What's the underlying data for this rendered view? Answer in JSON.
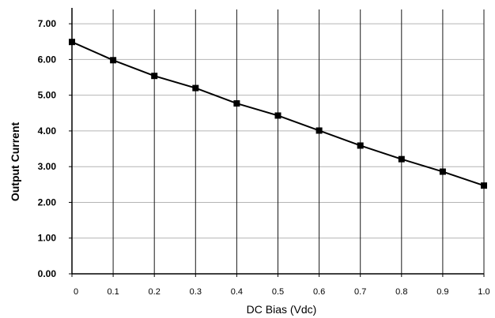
{
  "chart_data": {
    "type": "line",
    "xlabel": "DC Bias (Vdc)",
    "ylabel": "Output Current",
    "x": [
      0,
      0.1,
      0.2,
      0.3,
      0.4,
      0.5,
      0.6,
      0.7,
      0.8,
      0.9,
      1.0
    ],
    "x_tick_labels": [
      "0",
      "0.1",
      "0.2",
      "0.3",
      "0.4",
      "0.5",
      "0.6",
      "0.7",
      "0.8",
      "0.9",
      "1.0"
    ],
    "y_ticks": [
      0,
      1,
      2,
      3,
      4,
      5,
      6,
      7
    ],
    "y_tick_labels": [
      "0.00",
      "1.00",
      "2.00",
      "3.00",
      "4.00",
      "5.00",
      "6.00",
      "7.00"
    ],
    "series": [
      {
        "values": [
          6.49,
          5.98,
          5.54,
          5.2,
          4.77,
          4.43,
          4.01,
          3.59,
          3.21,
          2.86,
          2.47
        ]
      }
    ],
    "xlim": [
      0,
      1.0
    ],
    "ylim": [
      0,
      7.4
    ],
    "grid": true,
    "line_color": "#000000",
    "marker": "square"
  }
}
